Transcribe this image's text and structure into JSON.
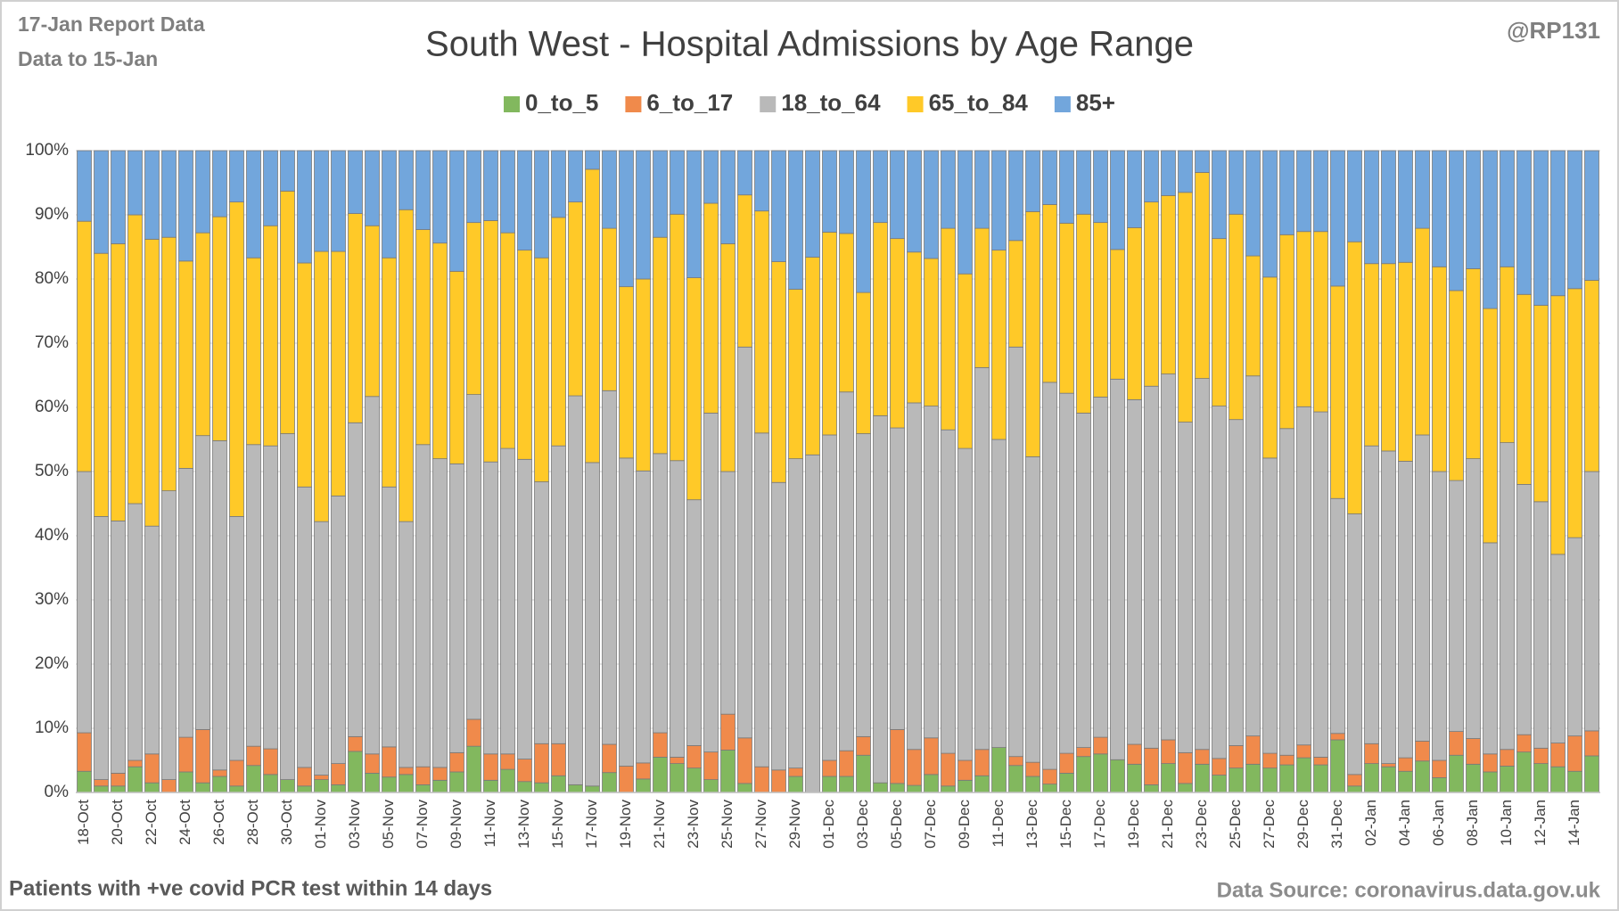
{
  "chart_data": {
    "type": "stacked_bar_100",
    "title": "South West - Hospital Admissions by Age Range",
    "report_lines": [
      "17-Jan Report Data",
      "Data to 15-Jan"
    ],
    "credit": "@RP131",
    "footnote": "Patients with  +ve covid PCR test within 14 days",
    "source": "Data Source: coronavirus.data.gov.uk",
    "categories": [
      "18-Oct",
      null,
      "20-Oct",
      null,
      "22-Oct",
      null,
      "24-Oct",
      null,
      "26-Oct",
      null,
      "28-Oct",
      null,
      "30-Oct",
      null,
      "01-Nov",
      null,
      "03-Nov",
      null,
      "05-Nov",
      null,
      "07-Nov",
      null,
      "09-Nov",
      null,
      "11-Nov",
      null,
      "13-Nov",
      null,
      "15-Nov",
      null,
      "17-Nov",
      null,
      "19-Nov",
      null,
      "21-Nov",
      null,
      "23-Nov",
      null,
      "25-Nov",
      null,
      "27-Nov",
      null,
      "29-Nov",
      null,
      "01-Dec",
      null,
      "03-Dec",
      null,
      "05-Dec",
      null,
      "07-Dec",
      null,
      "09-Dec",
      null,
      "11-Dec",
      null,
      "13-Dec",
      null,
      "15-Dec",
      null,
      "17-Dec",
      null,
      "19-Dec",
      null,
      "21-Dec",
      null,
      "23-Dec",
      null,
      "25-Dec",
      null,
      "27-Dec",
      null,
      "29-Dec",
      null,
      "31-Dec",
      null,
      "02-Jan",
      null,
      "04-Jan",
      null,
      "06-Jan",
      null,
      "08-Jan",
      null,
      "10-Jan",
      null,
      "12-Jan",
      null,
      "14-Jan",
      null
    ],
    "series": [
      {
        "name": "0_to_5",
        "color": "#82b85e",
        "values": [
          3.3,
          1,
          1,
          4,
          1.5,
          0,
          3.2,
          1.5,
          2.5,
          1,
          4.2,
          2.8,
          2,
          1,
          2,
          1.2,
          6.4,
          3,
          2.4,
          2.8,
          1.2,
          1.9,
          3.2,
          7.2,
          1.9,
          3.6,
          1.7,
          1.5,
          2.6,
          1.2,
          1,
          3.1,
          0,
          2.1,
          5.5,
          4.5,
          3.8,
          2,
          6.6,
          1.4,
          0,
          0,
          2.5,
          0,
          2.5,
          2.5,
          5.8,
          1.5,
          1.4,
          1.1,
          2.8,
          1,
          1.9,
          2.6,
          7,
          4.2,
          2.5,
          1.3,
          3,
          5.6,
          6,
          5.1,
          4.4,
          1.2,
          4.5,
          1.4,
          4.4,
          2.7,
          3.8,
          4.4,
          3.8,
          4.3,
          5.4,
          4.3,
          8.2,
          1,
          4.5,
          4,
          3.3,
          4.9,
          2.3,
          5.8,
          4.4,
          3.2,
          4.1,
          6.3,
          4.5,
          4,
          3.3,
          5.7
        ]
      },
      {
        "name": "6_to_17",
        "color": "#f08a4b",
        "values": [
          6,
          1,
          2,
          1,
          4.5,
          2,
          5.4,
          8.3,
          1,
          4,
          3,
          4,
          0,
          2.9,
          0.7,
          3.3,
          2.3,
          3,
          4.7,
          1.1,
          2.8,
          2,
          3,
          4.2,
          4.1,
          2.4,
          3.5,
          6.1,
          5,
          0,
          0,
          4.4,
          4.1,
          2.5,
          3.8,
          1,
          3.5,
          4.3,
          5.6,
          7.1,
          4,
          3.5,
          1.3,
          0,
          2.5,
          4,
          2.9,
          0,
          8.4,
          5.6,
          5.7,
          5.1,
          3.1,
          4.1,
          0,
          1.4,
          2.2,
          2.3,
          3.1,
          1.4,
          2.6,
          0,
          3.1,
          5.7,
          3.7,
          4.8,
          2.3,
          2.6,
          3.5,
          4.4,
          2.3,
          1.5,
          2,
          1.2,
          1,
          1.8,
          3.1,
          0.5,
          2.1,
          3.1,
          2.7,
          3.7,
          4,
          2.8,
          2.6,
          2.7,
          2.4,
          3.7,
          5.5,
          3.9
        ]
      },
      {
        "name": "18_to_64",
        "color": "#b9b9b9",
        "values": [
          40.7,
          41,
          39.3,
          40,
          35.5,
          45,
          41.9,
          45.8,
          51.3,
          38,
          47,
          47.2,
          53.9,
          43.7,
          39.5,
          41.7,
          48.9,
          55.7,
          40.5,
          38.3,
          50.2,
          48.1,
          45,
          50.6,
          45.5,
          47.6,
          46.7,
          40.8,
          46.4,
          60.6,
          50.4,
          55.1,
          48,
          45.5,
          43.5,
          46.2,
          38.3,
          52.8,
          37.8,
          60.9,
          52,
          44.8,
          48.2,
          52.6,
          50.7,
          55.9,
          47.2,
          57.2,
          47,
          54,
          51.7,
          50.4,
          48.6,
          59.5,
          48,
          63.8,
          47.6,
          60.3,
          56.1,
          52.1,
          53,
          59.3,
          53.7,
          56.4,
          57,
          51.5,
          57.8,
          54.9,
          50.8,
          56.1,
          46,
          50.9,
          52.7,
          53.8,
          36.6,
          40.6,
          46.4,
          48.7,
          46.2,
          47.7,
          45,
          39.1,
          43.6,
          32.9,
          47.8,
          39,
          38.4,
          29.4,
          30.9,
          40.4
        ]
      },
      {
        "name": "65_to_84",
        "color": "#ffc928",
        "values": [
          39,
          41,
          43.2,
          45,
          44.7,
          39.5,
          32.3,
          31.6,
          34.9,
          49,
          29.1,
          34.3,
          37.8,
          34.9,
          42.1,
          38.1,
          32.6,
          26.6,
          35.7,
          48.6,
          33.5,
          33.6,
          30,
          26.8,
          37.6,
          33.6,
          32.6,
          34.9,
          35.6,
          30.2,
          45.7,
          25.3,
          26.7,
          29.9,
          33.7,
          38.4,
          34.6,
          32.7,
          35.5,
          23.7,
          34.6,
          34.4,
          26.4,
          30.8,
          31.6,
          24.7,
          22,
          30.1,
          29.5,
          23.5,
          23,
          31.4,
          27.2,
          21.7,
          29.5,
          16.6,
          38.2,
          27.7,
          26.5,
          31,
          27.2,
          20.2,
          26.8,
          28.7,
          27.8,
          35.8,
          32.1,
          26.1,
          32,
          18.7,
          28.2,
          30.2,
          27.3,
          28.1,
          33.1,
          42.4,
          28.4,
          29.2,
          31,
          32.2,
          31.9,
          29.6,
          29.6,
          36.5,
          27.4,
          29.6,
          30.6,
          40.3,
          38.8,
          29.8
        ]
      },
      {
        "name": "85+",
        "color": "#72a6dc",
        "values": [
          11,
          16,
          14.5,
          10,
          13.8,
          13.5,
          17.2,
          12.8,
          10.3,
          8,
          16.7,
          11.7,
          6.3,
          17.5,
          15.7,
          15.7,
          9.8,
          11.7,
          16.7,
          9.2,
          12.3,
          14.4,
          18.8,
          11.2,
          10.9,
          12.8,
          15.5,
          16.7,
          10.4,
          8,
          2.9,
          12.1,
          21.2,
          20,
          13.5,
          9.9,
          19.8,
          8.2,
          14.5,
          6.9,
          9.4,
          17.3,
          21.6,
          16.6,
          12.7,
          12.9,
          22.1,
          11.2,
          13.7,
          15.8,
          16.8,
          12.1,
          19.2,
          12.1,
          15.5,
          14,
          9.5,
          8.4,
          11.3,
          9.9,
          11.2,
          15.4,
          12,
          8,
          7,
          6.5,
          3.4,
          13.7,
          9.9,
          16.4,
          19.7,
          13.1,
          12.6,
          12.6,
          21.1,
          14.2,
          17.6,
          17.6,
          17.4,
          12.1,
          18.1,
          21.8,
          18.4,
          24.6,
          18.1,
          22.4,
          24.1,
          22.6,
          21.5,
          20.2
        ]
      }
    ],
    "ylim": [
      0,
      100
    ],
    "yticks": [
      {
        "value": 0,
        "label": "0%"
      },
      {
        "value": 10,
        "label": "10%"
      },
      {
        "value": 20,
        "label": "20%"
      },
      {
        "value": 30,
        "label": "30%"
      },
      {
        "value": 40,
        "label": "40%"
      },
      {
        "value": 50,
        "label": "50%"
      },
      {
        "value": 60,
        "label": "60%"
      },
      {
        "value": 70,
        "label": "70%"
      },
      {
        "value": 80,
        "label": "80%"
      },
      {
        "value": 90,
        "label": "90%"
      },
      {
        "value": 100,
        "label": "100%"
      }
    ],
    "grid": true,
    "legend": "top"
  }
}
